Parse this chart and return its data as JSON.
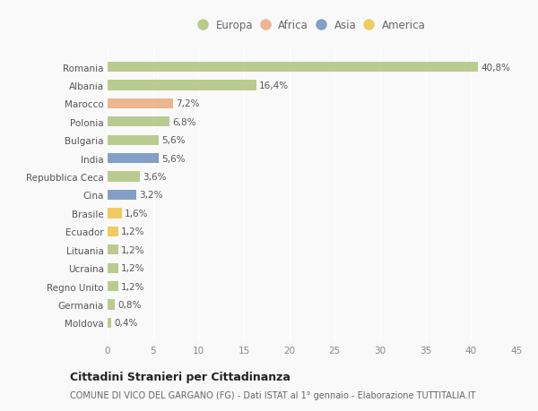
{
  "categories": [
    "Romania",
    "Albania",
    "Marocco",
    "Polonia",
    "Bulgaria",
    "India",
    "Repubblica Ceca",
    "Cina",
    "Brasile",
    "Ecuador",
    "Lituania",
    "Ucraina",
    "Regno Unito",
    "Germania",
    "Moldova"
  ],
  "values": [
    40.8,
    16.4,
    7.2,
    6.8,
    5.6,
    5.6,
    3.6,
    3.2,
    1.6,
    1.2,
    1.2,
    1.2,
    1.2,
    0.8,
    0.4
  ],
  "labels": [
    "40,8%",
    "16,4%",
    "7,2%",
    "6,8%",
    "5,6%",
    "5,6%",
    "3,6%",
    "3,2%",
    "1,6%",
    "1,2%",
    "1,2%",
    "1,2%",
    "1,2%",
    "0,8%",
    "0,4%"
  ],
  "colors": [
    "#adc178",
    "#adc178",
    "#e8a87c",
    "#adc178",
    "#adc178",
    "#6b8cba",
    "#adc178",
    "#6b8cba",
    "#f0c040",
    "#f0c040",
    "#adc178",
    "#adc178",
    "#adc178",
    "#adc178",
    "#adc178"
  ],
  "continent_colors": {
    "Europa": "#adc178",
    "Africa": "#e8a87c",
    "Asia": "#6b8cba",
    "America": "#f0c040"
  },
  "xlim": [
    0,
    45
  ],
  "xticks": [
    0,
    5,
    10,
    15,
    20,
    25,
    30,
    35,
    40,
    45
  ],
  "title": "Cittadini Stranieri per Cittadinanza",
  "subtitle": "COMUNE DI VICO DEL GARGANO (FG) - Dati ISTAT al 1° gennaio - Elaborazione TUTTITALIA.IT",
  "bg_color": "#f9f9f9",
  "bar_alpha": 0.82,
  "label_fontsize": 7.5,
  "tick_fontsize": 7.5,
  "legend_fontsize": 8.5,
  "title_fontsize": 9,
  "subtitle_fontsize": 7
}
